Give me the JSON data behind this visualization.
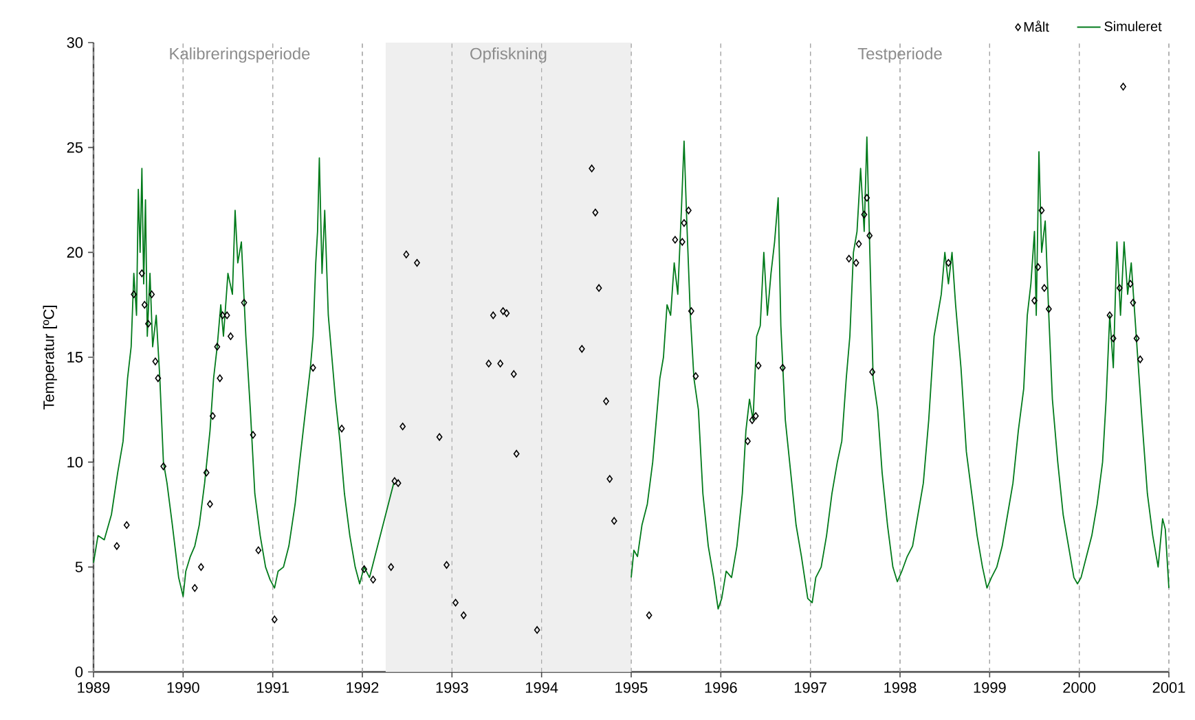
{
  "chart_data": {
    "type": "line",
    "ylabel": "Temperatur [ºC]",
    "xlim": [
      1989,
      2001
    ],
    "ylim": [
      0,
      30
    ],
    "xticks": [
      1989,
      1990,
      1991,
      1992,
      1993,
      1994,
      1995,
      1996,
      1997,
      1998,
      1999,
      2000,
      2001
    ],
    "yticks": [
      0,
      5,
      10,
      15,
      20,
      25,
      30
    ],
    "grid": "x",
    "legend": "top right",
    "bands": [
      {
        "axis": "x",
        "from": 1992.26,
        "to": 1995,
        "label": "Opfiskning",
        "color": "#efefef"
      }
    ],
    "annotations": [
      "Kalibreringsperiode",
      "Testperiode"
    ],
    "series": [
      {
        "name": "Målt",
        "type": "scatter",
        "marker": "diamond",
        "color": "#000000",
        "x": [
          1989.26,
          1989.37,
          1989.45,
          1989.54,
          1989.57,
          1989.65,
          1989.61,
          1989.69,
          1989.72,
          1989.78,
          1990.13,
          1990.2,
          1990.26,
          1990.3,
          1990.33,
          1990.38,
          1990.41,
          1990.44,
          1990.49,
          1990.53,
          1990.68,
          1990.78,
          1990.84,
          1991.02,
          1991.45,
          1991.77,
          1992.02,
          1992.12,
          1992.32,
          1992.36,
          1992.4,
          1992.45,
          1992.49,
          1992.61,
          1992.86,
          1992.94,
          1993.04,
          1993.13,
          1993.41,
          1993.46,
          1993.54,
          1993.57,
          1993.61,
          1993.69,
          1993.72,
          1993.95,
          1994.45,
          1994.56,
          1994.6,
          1994.64,
          1994.72,
          1994.76,
          1994.81,
          1995.2,
          1995.49,
          1995.57,
          1995.59,
          1995.64,
          1995.67,
          1995.72,
          1996.3,
          1996.35,
          1996.39,
          1996.42,
          1996.69,
          1997.43,
          1997.51,
          1997.54,
          1997.6,
          1997.63,
          1997.66,
          1997.69,
          1998.54,
          1999.5,
          1999.54,
          1999.58,
          1999.61,
          1999.66,
          2000.34,
          2000.38,
          2000.45,
          2000.49,
          2000.57,
          2000.6,
          2000.64,
          2000.68
        ],
        "values": [
          6.0,
          7.0,
          18.0,
          19.0,
          17.5,
          18.0,
          16.6,
          14.8,
          14.0,
          9.8,
          4.0,
          5.0,
          9.5,
          8.0,
          12.2,
          15.5,
          14.0,
          17.0,
          17.0,
          16.0,
          17.6,
          11.3,
          5.8,
          2.5,
          14.5,
          11.6,
          4.9,
          4.4,
          5.0,
          9.1,
          9.0,
          11.7,
          19.9,
          19.5,
          11.2,
          5.1,
          3.3,
          2.7,
          14.7,
          17.0,
          14.7,
          17.2,
          17.1,
          14.2,
          10.4,
          2.0,
          15.4,
          24.0,
          21.9,
          18.3,
          12.9,
          9.2,
          7.2,
          2.7,
          20.6,
          20.5,
          21.4,
          22.0,
          17.2,
          14.1,
          11.0,
          12.0,
          12.2,
          14.6,
          14.5,
          19.7,
          19.5,
          20.4,
          21.8,
          22.6,
          20.8,
          14.3,
          19.5,
          17.7,
          19.3,
          22.0,
          18.3,
          17.3,
          17.0,
          15.9,
          18.3,
          27.9,
          18.5,
          17.6,
          15.9,
          14.9
        ]
      },
      {
        "name": "Simuleret",
        "color": "#007a1a",
        "x": [
          1989.0,
          1989.05,
          1989.12,
          1989.2,
          1989.27,
          1989.33,
          1989.38,
          1989.42,
          1989.45,
          1989.48,
          1989.5,
          1989.52,
          1989.54,
          1989.56,
          1989.58,
          1989.6,
          1989.63,
          1989.66,
          1989.7,
          1989.74,
          1989.78,
          1989.82,
          1989.88,
          1989.95,
          1990.0,
          1990.03,
          1990.08,
          1990.13,
          1990.18,
          1990.24,
          1990.3,
          1990.34,
          1990.38,
          1990.42,
          1990.45,
          1990.5,
          1990.55,
          1990.58,
          1990.61,
          1990.65,
          1990.7,
          1990.75,
          1990.8,
          1990.86,
          1990.92,
          1990.97,
          1991.02,
          1991.06,
          1991.12,
          1991.18,
          1991.25,
          1991.3,
          1991.34,
          1991.38,
          1991.42,
          1991.45,
          1991.48,
          1991.5,
          1991.52,
          1991.55,
          1991.58,
          1991.62,
          1991.66,
          1991.7,
          1991.75,
          1991.8,
          1991.86,
          1991.92,
          1991.97,
          1992.02,
          1992.08,
          1992.14,
          1992.2,
          1992.26,
          1992.32,
          1992.35,
          1993.5,
          1995.0,
          1995.03,
          1995.07,
          1995.12,
          1995.18,
          1995.24,
          1995.28,
          1995.32,
          1995.36,
          1995.4,
          1995.44,
          1995.48,
          1995.52,
          1995.56,
          1995.59,
          1995.62,
          1995.66,
          1995.7,
          1995.75,
          1995.8,
          1995.86,
          1995.92,
          1995.97,
          1996.01,
          1996.06,
          1996.12,
          1996.18,
          1996.24,
          1996.28,
          1996.32,
          1996.36,
          1996.4,
          1996.44,
          1996.48,
          1996.52,
          1996.56,
          1996.6,
          1996.64,
          1996.67,
          1996.72,
          1996.78,
          1996.84,
          1996.9,
          1996.97,
          1997.02,
          1997.06,
          1997.12,
          1997.18,
          1997.24,
          1997.3,
          1997.35,
          1997.4,
          1997.44,
          1997.48,
          1997.52,
          1997.56,
          1997.6,
          1997.63,
          1997.66,
          1997.7,
          1997.75,
          1997.8,
          1997.86,
          1997.92,
          1997.97,
          1998.02,
          1998.08,
          1998.14,
          1998.2,
          1998.26,
          1998.32,
          1998.38,
          1998.42,
          1998.46,
          1998.5,
          1998.54,
          1998.58,
          1998.62,
          1998.68,
          1998.74,
          1998.8,
          1998.86,
          1998.92,
          1998.97,
          1999.02,
          1999.08,
          1999.14,
          1999.2,
          1999.26,
          1999.32,
          1999.38,
          1999.42,
          1999.46,
          1999.5,
          1999.52,
          1999.55,
          1999.58,
          1999.62,
          1999.66,
          1999.7,
          1999.76,
          1999.82,
          1999.88,
          1999.94,
          1999.98,
          2000.02,
          2000.08,
          2000.14,
          2000.2,
          2000.26,
          2000.3,
          2000.34,
          2000.38,
          2000.42,
          2000.46,
          2000.5,
          2000.54,
          2000.58,
          2000.62,
          2000.66,
          2000.7,
          2000.76,
          2000.82,
          2000.88,
          2000.93,
          2000.96,
          2001.0
        ],
        "values": [
          5.2,
          6.5,
          6.3,
          7.5,
          9.5,
          11.0,
          14.0,
          15.5,
          19.0,
          17.0,
          23.0,
          20.0,
          24.0,
          18.5,
          22.5,
          16.0,
          19.0,
          15.5,
          17.0,
          14.0,
          10.0,
          9.0,
          7.0,
          4.5,
          3.6,
          4.8,
          5.5,
          6.0,
          7.0,
          9.0,
          11.5,
          14.0,
          15.5,
          17.5,
          16.0,
          19.0,
          18.0,
          22.0,
          19.5,
          20.5,
          16.0,
          12.5,
          8.5,
          6.5,
          5.0,
          4.4,
          4.0,
          4.8,
          5.0,
          6.0,
          8.0,
          10.0,
          11.5,
          13.0,
          14.5,
          16.0,
          19.5,
          21.0,
          24.5,
          19.0,
          22.0,
          17.0,
          15.0,
          13.0,
          11.0,
          8.5,
          6.5,
          5.0,
          4.2,
          5.0,
          4.5,
          5.5,
          6.5,
          7.5,
          8.5,
          9.0,
          null,
          4.5,
          5.8,
          5.5,
          7.0,
          8.0,
          10.0,
          12.0,
          14.0,
          15.0,
          17.5,
          17.0,
          19.5,
          18.0,
          22.0,
          25.3,
          21.5,
          17.0,
          14.0,
          12.5,
          8.5,
          6.0,
          4.5,
          3.0,
          3.5,
          4.8,
          4.5,
          6.0,
          8.5,
          11.5,
          13.0,
          12.0,
          16.0,
          16.5,
          20.0,
          17.0,
          19.0,
          20.5,
          22.6,
          16.5,
          12.0,
          9.5,
          7.0,
          5.5,
          3.5,
          3.3,
          4.5,
          5.0,
          6.5,
          8.5,
          10.0,
          11.0,
          14.0,
          16.0,
          20.0,
          21.0,
          24.0,
          21.0,
          25.5,
          20.5,
          14.0,
          12.5,
          9.5,
          7.0,
          5.0,
          4.3,
          4.8,
          5.5,
          6.0,
          7.5,
          9.0,
          12.0,
          16.0,
          17.0,
          18.0,
          20.0,
          18.5,
          20.0,
          17.5,
          14.5,
          10.5,
          8.5,
          6.5,
          5.0,
          4.0,
          4.5,
          5.0,
          6.0,
          7.5,
          9.0,
          11.5,
          13.5,
          17.0,
          18.5,
          21.0,
          17.0,
          24.8,
          20.0,
          21.5,
          17.0,
          13.0,
          10.0,
          7.5,
          6.0,
          4.5,
          4.2,
          4.5,
          5.5,
          6.5,
          8.0,
          10.0,
          13.0,
          17.0,
          14.5,
          20.5,
          17.0,
          20.5,
          18.0,
          19.5,
          17.0,
          14.5,
          12.0,
          8.5,
          6.5,
          5.0,
          7.3,
          6.8,
          4.0
        ]
      }
    ]
  }
}
